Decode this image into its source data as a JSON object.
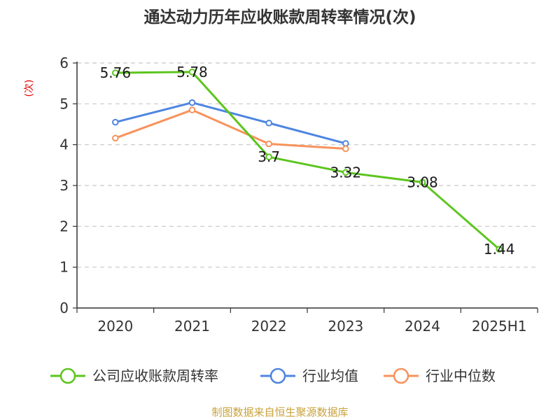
{
  "chart_data": {
    "type": "line",
    "title": "通达动力历年应收账款周转率情况(次)",
    "ylabel": "(次)",
    "xlabel": "",
    "categories": [
      "2020",
      "2021",
      "2022",
      "2023",
      "2024",
      "2025H1"
    ],
    "yticks": [
      "0",
      "1",
      "2",
      "3",
      "4",
      "5",
      "6"
    ],
    "ylim": [
      0,
      6
    ],
    "grid": true,
    "legend_position": "bottom",
    "series": [
      {
        "name": "公司应收账款周转率",
        "color": "#5cc51e",
        "values": [
          5.76,
          5.78,
          3.7,
          3.32,
          3.08,
          1.44
        ],
        "labels": [
          "5.76",
          "5.78",
          "3.7",
          "3.32",
          "3.08",
          "1.44"
        ]
      },
      {
        "name": "行业均值",
        "color": "#4e86e0",
        "values": [
          4.55,
          5.03,
          4.53,
          4.03,
          null,
          null
        ]
      },
      {
        "name": "行业中位数",
        "color": "#f7935c",
        "values": [
          4.16,
          4.85,
          4.02,
          3.9,
          null,
          null
        ]
      }
    ]
  },
  "source": "制图数据来自恒生聚源数据库"
}
